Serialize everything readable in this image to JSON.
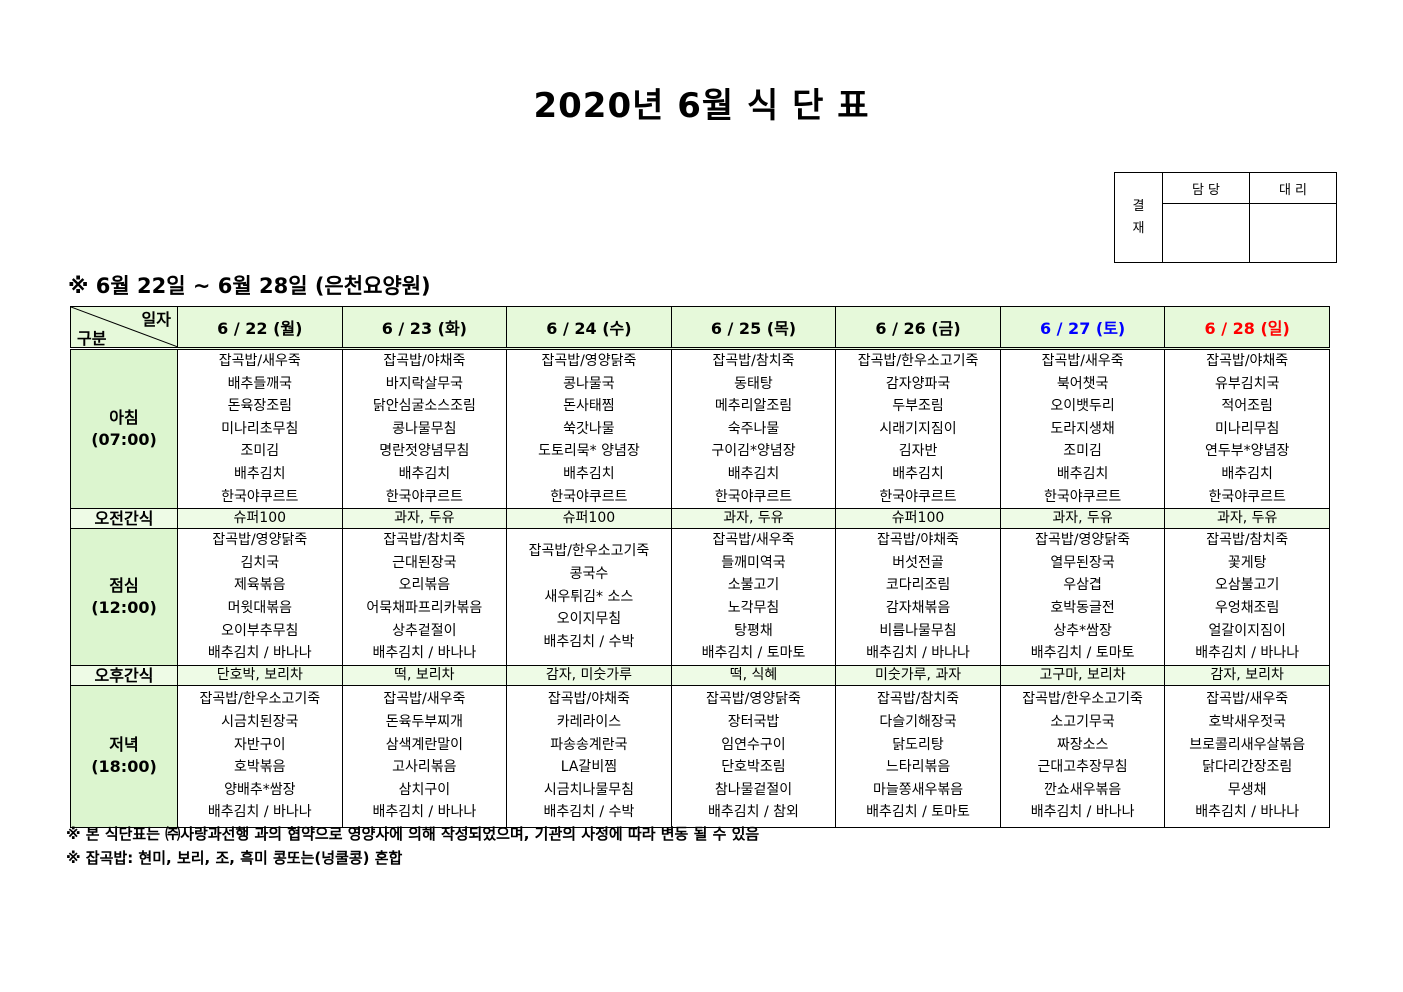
{
  "title": "2020년 6월 식 단 표",
  "approval": {
    "label": "결\n재",
    "label_top": "결",
    "label_bottom": "재",
    "col1": "담 당",
    "col2": "대 리"
  },
  "subtitle": "※ 6월 22일 ~ 6월 28일 (은천요양원)",
  "header": {
    "corner_top": "일자",
    "corner_bottom": "구분"
  },
  "colors": {
    "saturday": "#0000ff",
    "sunday": "#ff0000",
    "header_bg": "#e6f9da",
    "label_bg": "#dcf5cf"
  },
  "days": [
    {
      "label": "6 / 22 (월)",
      "color": "#000000"
    },
    {
      "label": "6 / 23 (화)",
      "color": "#000000"
    },
    {
      "label": "6 / 24 (수)",
      "color": "#000000"
    },
    {
      "label": "6 / 25 (목)",
      "color": "#000000"
    },
    {
      "label": "6 / 26 (금)",
      "color": "#000000"
    },
    {
      "label": "6 / 27 (토)",
      "color": "#0000ff"
    },
    {
      "label": "6 / 28 (일)",
      "color": "#ff0000"
    }
  ],
  "rows": [
    {
      "label": "아침",
      "time": "(07:00)",
      "type": "meal",
      "cells": [
        [
          "잡곡밥/새우죽",
          "배추들깨국",
          "돈육장조림",
          "미나리초무침",
          "조미김",
          "배추김치",
          "한국야쿠르트"
        ],
        [
          "잡곡밥/야채죽",
          "바지락살무국",
          "닭안심굴소스조림",
          "콩나물무침",
          "명란젓양념무침",
          "배추김치",
          "한국야쿠르트"
        ],
        [
          "잡곡밥/영양닭죽",
          "콩나물국",
          "돈사태찜",
          "쑥갓나물",
          "도토리묵* 양념장",
          "배추김치",
          "한국야쿠르트"
        ],
        [
          "잡곡밥/참치죽",
          "동태탕",
          "메추리알조림",
          "숙주나물",
          "구이김*양념장",
          "배추김치",
          "한국야쿠르트"
        ],
        [
          "잡곡밥/한우소고기죽",
          "감자양파국",
          "두부조림",
          "시래기지짐이",
          "김자반",
          "배추김치",
          "한국야쿠르트"
        ],
        [
          "잡곡밥/새우죽",
          "북어챗국",
          "오이뱃두리",
          "도라지생채",
          "조미김",
          "배추김치",
          "한국야쿠르트"
        ],
        [
          "잡곡밥/야채죽",
          "유부김치국",
          "적어조림",
          "미나리무침",
          "연두부*양념장",
          "배추김치",
          "한국야쿠르트"
        ]
      ]
    },
    {
      "label": "오전간식",
      "type": "snack",
      "cells": [
        "슈퍼100",
        "과자,  두유",
        "슈퍼100",
        "과자,  두유",
        "슈퍼100",
        "과자,  두유",
        "과자,  두유"
      ]
    },
    {
      "label": "점심",
      "time": "(12:00)",
      "type": "meal",
      "cells": [
        [
          "잡곡밥/영양닭죽",
          "김치국",
          "제육볶음",
          "머윗대볶음",
          "오이부추무침",
          "배추김치 / 바나나"
        ],
        [
          "잡곡밥/참치죽",
          "근대된장국",
          "오리볶음",
          "어묵채파프리카볶음",
          "상추겉절이",
          "배추김치 / 바나나"
        ],
        [
          "잡곡밥/한우소고기죽",
          "콩국수",
          "새우튀김* 소스",
          "오이지무침",
          "배추김치 / 수박"
        ],
        [
          "잡곡밥/새우죽",
          "들깨미역국",
          "소불고기",
          "노각무침",
          "탕평채",
          "배추김치 / 토마토"
        ],
        [
          "잡곡밥/야채죽",
          "버섯전골",
          "코다리조림",
          "감자채볶음",
          "비름나물무침",
          "배추김치 / 바나나"
        ],
        [
          "잡곡밥/영양닭죽",
          "열무된장국",
          "우삼겹",
          "호박동글전",
          "상추*쌈장",
          "배추김치 / 토마토"
        ],
        [
          "잡곡밥/참치죽",
          "꽃게탕",
          "오삼불고기",
          "우엉채조림",
          "얼갈이지짐이",
          "배추김치 / 바나나"
        ]
      ]
    },
    {
      "label": "오후간식",
      "type": "snack",
      "cells": [
        "단호박,  보리차",
        "떡,  보리차",
        "감자,  미숫가루",
        "떡,  식혜",
        "미숫가루,  과자",
        "고구마,  보리차",
        "감자,  보리차"
      ]
    },
    {
      "label": "저녁",
      "time": "(18:00)",
      "type": "meal",
      "cells": [
        [
          "잡곡밥/한우소고기죽",
          "시금치된장국",
          "자반구이",
          "호박볶음",
          "양배추*쌈장",
          "배추김치 / 바나나"
        ],
        [
          "잡곡밥/새우죽",
          "돈육두부찌개",
          "삼색계란말이",
          "고사리볶음",
          "삼치구이",
          "배추김치 / 바나나"
        ],
        [
          "잡곡밥/야채죽",
          "카레라이스",
          "파송송계란국",
          "LA갈비찜",
          "시금치나물무침",
          "배추김치 / 수박"
        ],
        [
          "잡곡밥/영양닭죽",
          "장터국밥",
          "임연수구이",
          "단호박조림",
          "참나물겉절이",
          "배추김치 / 참외"
        ],
        [
          "잡곡밥/참치죽",
          "다슬기해장국",
          "닭도리탕",
          "느타리볶음",
          "마늘쫑새우볶음",
          "배추김치 / 토마토"
        ],
        [
          "잡곡밥/한우소고기죽",
          "소고기무국",
          "짜장소스",
          "근대고추장무침",
          "깐쇼새우볶음",
          "배추김치 / 바나나"
        ],
        [
          "잡곡밥/새우죽",
          "호박새우젓국",
          "브로콜리새우살볶음",
          "닭다리간장조림",
          "무생채",
          "배추김치 / 바나나"
        ]
      ]
    }
  ],
  "notes": [
    "※ 본 식단표는 ㈜사랑과선행 과의 협약으로 영양사에 의해 작성되었으며, 기관의 사정에 따라 변동 될 수 있음",
    "※ 잡곡밥: 현미, 보리, 조, 흑미 콩또는(넝쿨콩) 혼합"
  ]
}
